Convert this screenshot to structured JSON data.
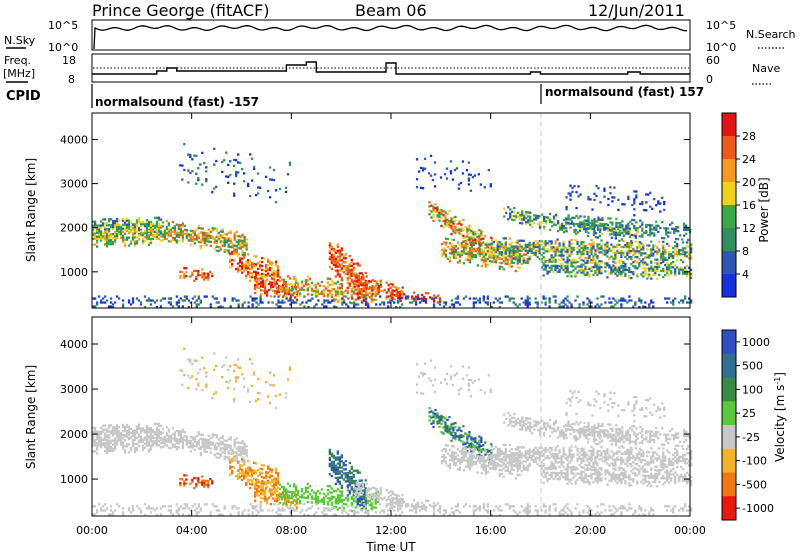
{
  "header": {
    "station": "Prince George (fitACF)",
    "beam": "Beam 06",
    "date": "12/Jun/2011"
  },
  "top_panel": {
    "left_label": "N.Sky",
    "left_ticks": [
      "10^5",
      "10^0"
    ],
    "right_ticks": [
      "10^5",
      "10^0"
    ],
    "right_label": "N.Search"
  },
  "freq_panel": {
    "left_label_1": "Freq.",
    "left_label_2": "[MHz]",
    "left_ticks": [
      "18",
      "8"
    ],
    "right_ticks": [
      "60",
      "0"
    ],
    "right_label": "Nave"
  },
  "cpid": {
    "label": "CPID",
    "segments": [
      {
        "text": "normalsound (fast) -157",
        "start_hour": 0
      },
      {
        "text": "normalsound (fast) 157",
        "start_hour": 18
      }
    ]
  },
  "chart_data": [
    {
      "type": "heatmap",
      "ylabel": "Slant Range [km]",
      "xlabel": "Time UT",
      "x_range_hours": [
        0,
        24
      ],
      "y_range_km": [
        180,
        4600
      ],
      "x_ticks": [
        "00:00",
        "04:00",
        "08:00",
        "12:00",
        "16:00",
        "20:00",
        "00:00"
      ],
      "y_ticks": [
        1000,
        2000,
        3000,
        4000
      ],
      "colorbar": {
        "label": "Power [dB]",
        "ticks": [
          4,
          8,
          12,
          16,
          20,
          24,
          28
        ],
        "range": [
          0,
          32
        ],
        "colors": [
          "#1531e0",
          "#2f55b5",
          "#2f8f5f",
          "#3aa845",
          "#f0d21e",
          "#f49a1c",
          "#ef5a1a",
          "#e2140f"
        ]
      }
    },
    {
      "type": "heatmap",
      "ylabel": "Slant Range [km]",
      "xlabel": "Time UT",
      "x_range_hours": [
        0,
        24
      ],
      "y_range_km": [
        180,
        4600
      ],
      "x_ticks": [
        "00:00",
        "04:00",
        "08:00",
        "12:00",
        "16:00",
        "20:00",
        "00:00"
      ],
      "y_ticks": [
        1000,
        2000,
        3000,
        4000
      ],
      "colorbar": {
        "label": "Velocity [m s^-1]",
        "ticks": [
          "1000",
          "500",
          "100",
          "25",
          "-25",
          "-100",
          "-500",
          "-1000"
        ],
        "colors": [
          "#2f4fc0",
          "#2f6f8f",
          "#3a8a45",
          "#5ac83a",
          "#c8c8c8",
          "#f4b42a",
          "#f07a12",
          "#e81a10"
        ]
      }
    }
  ]
}
